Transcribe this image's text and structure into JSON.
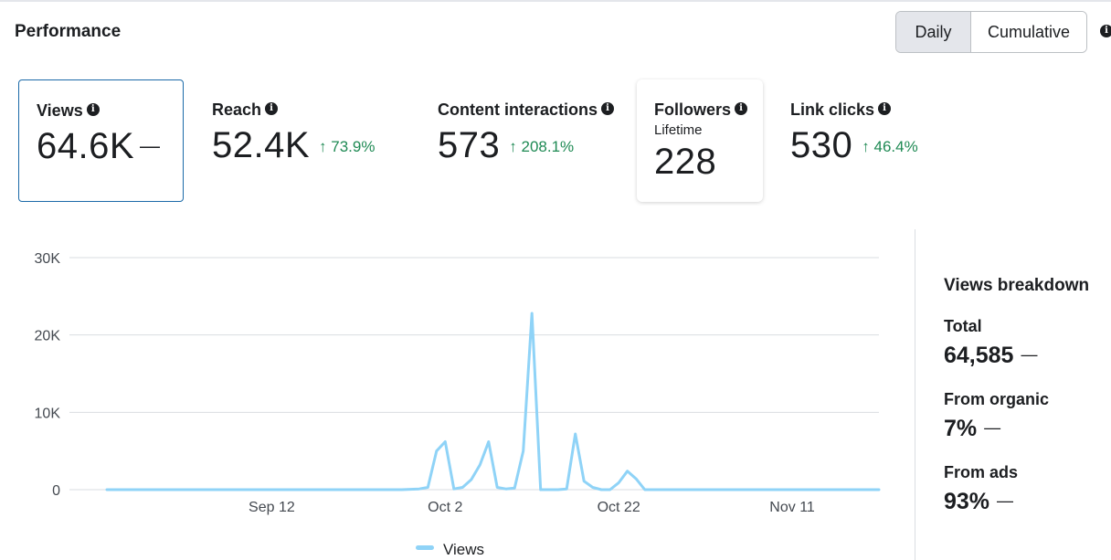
{
  "header": {
    "title": "Performance",
    "toggle": {
      "daily_label": "Daily",
      "cumulative_label": "Cumulative",
      "selected": "Daily"
    }
  },
  "metrics": [
    {
      "label": "Views",
      "value": "64.6K",
      "change": "—"
    },
    {
      "label": "Reach",
      "value": "52.4K",
      "change": "73.9%"
    },
    {
      "label": "Content interactions",
      "value": "573",
      "change": "208.1%"
    },
    {
      "label": "Followers",
      "sublabel": "Lifetime",
      "value": "228"
    },
    {
      "label": "Link clicks",
      "value": "530",
      "change": "46.4%"
    }
  ],
  "colors": {
    "series": "#8fd3f7",
    "positive": "#1f8a54",
    "selected_border": "#1b6aa8"
  },
  "chart_data": {
    "type": "line",
    "title": "",
    "xlabel": "",
    "ylabel": "",
    "ylim": [
      0,
      30000
    ],
    "y_ticks": [
      0,
      10000,
      20000,
      30000
    ],
    "y_tick_labels": [
      "0",
      "10K",
      "20K",
      "30K"
    ],
    "x_tick_labels": [
      {
        "day": 19,
        "label": "Sep 12"
      },
      {
        "day": 39,
        "label": "Oct 2"
      },
      {
        "day": 59,
        "label": "Oct 22"
      },
      {
        "day": 79,
        "label": "Nov 11"
      }
    ],
    "x_range": [
      0,
      89
    ],
    "legend": {
      "position": "bottom-center",
      "label": "Views"
    },
    "grid": true,
    "series": [
      {
        "name": "Views",
        "x": [
          0,
          2,
          4,
          6,
          8,
          10,
          12,
          14,
          16,
          18,
          20,
          22,
          24,
          26,
          28,
          30,
          32,
          34,
          36,
          37,
          38,
          39,
          40,
          41,
          42,
          43,
          44,
          45,
          46,
          47,
          48,
          49,
          50,
          51,
          52,
          53,
          54,
          55,
          56,
          57,
          58,
          59,
          60,
          61,
          62,
          63,
          64,
          66,
          68,
          70,
          72,
          74,
          76,
          78,
          80,
          82,
          84,
          86,
          88,
          89
        ],
        "values": [
          0,
          0,
          0,
          0,
          0,
          0,
          0,
          0,
          0,
          0,
          0,
          0,
          0,
          0,
          0,
          0,
          0,
          0,
          100,
          300,
          5000,
          6200,
          100,
          300,
          1300,
          3200,
          6200,
          300,
          100,
          200,
          5000,
          22800,
          0,
          0,
          0,
          100,
          7200,
          1100,
          300,
          0,
          0,
          900,
          2400,
          1400,
          0,
          0,
          0,
          0,
          0,
          0,
          0,
          0,
          0,
          0,
          0,
          0,
          0,
          0,
          0,
          0
        ]
      }
    ]
  },
  "breakdown": {
    "title": "Views breakdown",
    "rows": [
      {
        "label": "Total",
        "value": "64,585",
        "change": "—"
      },
      {
        "label": "From organic",
        "value": "7%",
        "change": "—"
      },
      {
        "label": "From ads",
        "value": "93%",
        "change": "—"
      }
    ]
  }
}
